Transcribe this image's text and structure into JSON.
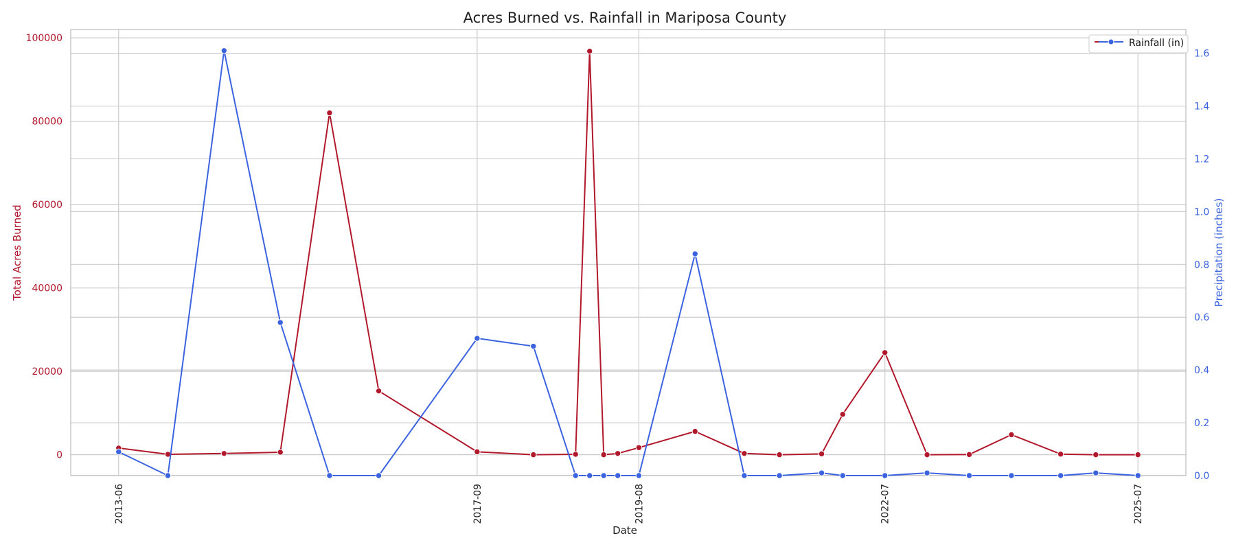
{
  "chart_data": {
    "type": "line",
    "title": "Acres Burned vs. Rainfall in Mariposa County",
    "xlabel": "Date",
    "ylabel_left": "Total Acres Burned",
    "ylabel_right": "Precipitation (inches)",
    "x": [
      "2013-06",
      "2014-01",
      "2014-09",
      "2015-05",
      "2015-12",
      "2016-07",
      "2017-09",
      "2018-05",
      "2018-11",
      "2019-01",
      "2019-03",
      "2019-05",
      "2019-08",
      "2020-04",
      "2020-11",
      "2021-04",
      "2021-10",
      "2022-01",
      "2022-07",
      "2023-01",
      "2023-07",
      "2024-01",
      "2024-08",
      "2025-01",
      "2025-07"
    ],
    "x_tick_labels": [
      "2013-06",
      "2017-09",
      "2019-08",
      "2022-07",
      "2025-07"
    ],
    "grid": true,
    "legend_position": "top-right",
    "series": [
      {
        "name": "",
        "axis": "left",
        "color": "#b2182b",
        "values": [
          1600,
          100,
          300,
          600,
          82000,
          15300,
          700,
          0,
          100,
          96800,
          0,
          300,
          1700,
          5600,
          300,
          0,
          200,
          9700,
          24500,
          0,
          50,
          4800,
          150,
          0,
          0
        ]
      },
      {
        "name": "Rainfall (in)",
        "axis": "right",
        "color": "#3b63e0",
        "values": [
          0.09,
          0.0,
          1.61,
          0.58,
          0.0,
          0.0,
          0.52,
          0.49,
          0.0,
          0.0,
          0.0,
          0.0,
          0.0,
          0.84,
          0.0,
          0.0,
          0.01,
          0.0,
          0.0,
          0.01,
          0.0,
          0.0,
          0.0,
          0.01,
          0.0
        ]
      }
    ],
    "ylim_left": [
      -5000,
      102000
    ],
    "yticks_left": [
      0,
      20000,
      40000,
      60000,
      80000,
      100000
    ],
    "ylim_right": [
      0,
      1.69
    ],
    "yticks_right": [
      "0.0",
      "0.2",
      "0.4",
      "0.6",
      "0.8",
      "1.0",
      "1.2",
      "1.4",
      "1.6"
    ],
    "colors": {
      "left_axis": "#b2182b",
      "right_axis": "#3b63e0",
      "grid": "#cccccc"
    }
  }
}
